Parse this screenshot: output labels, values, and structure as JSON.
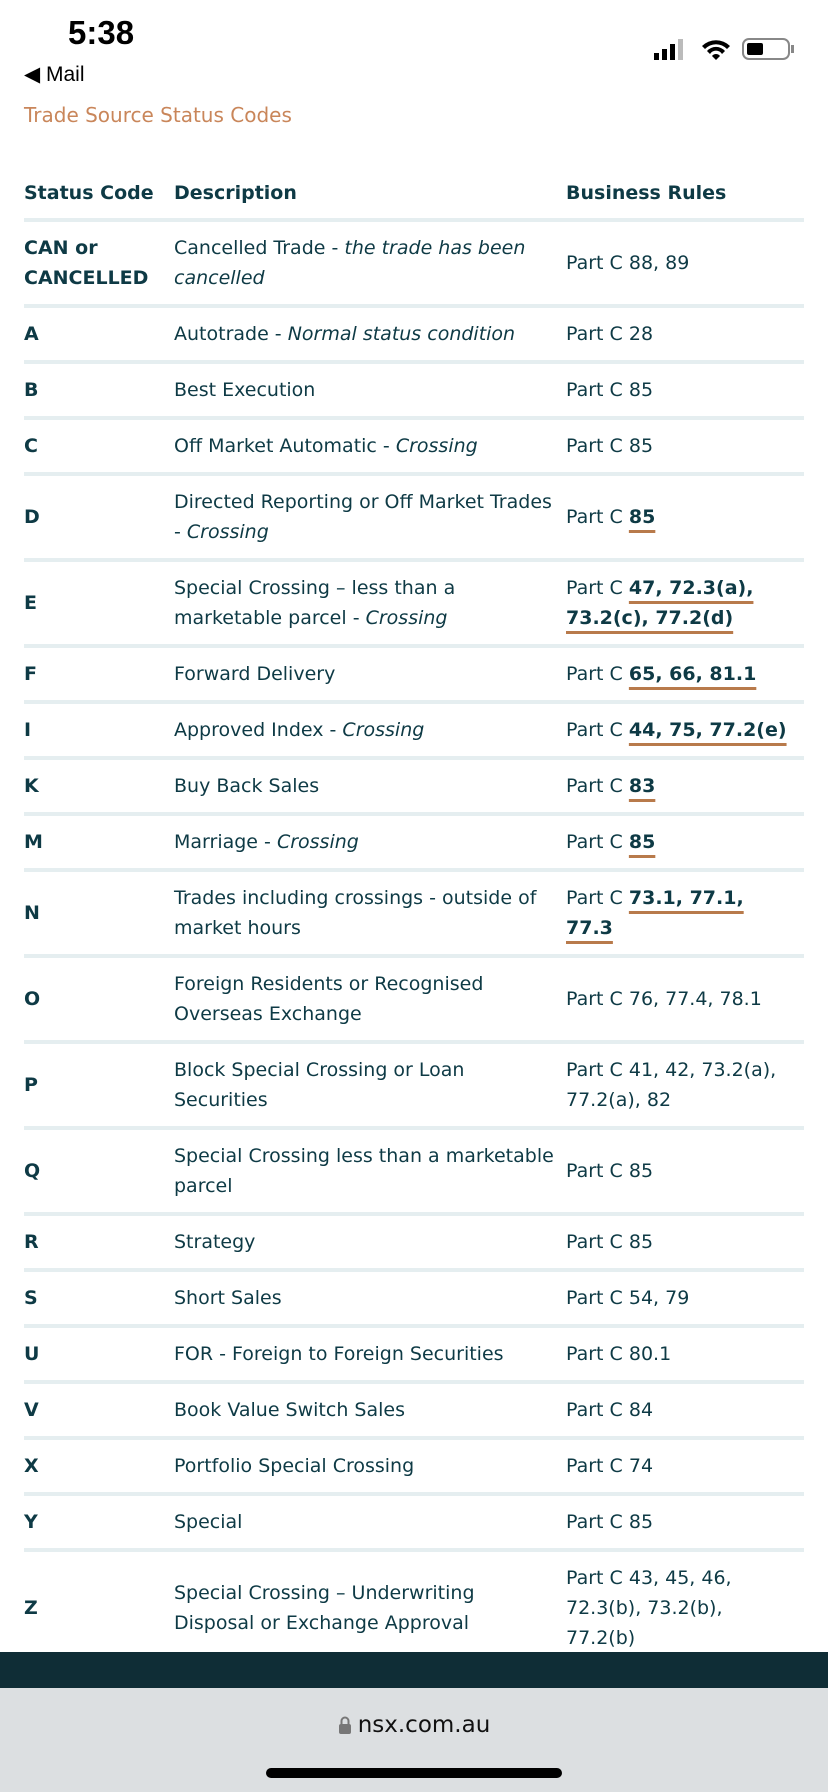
{
  "status_bar": {
    "time": "5:38",
    "back": "Mail"
  },
  "breadcrumb": "Trade Source Status Codes",
  "table": {
    "headers": [
      "Status Code",
      "Description",
      "Business Rules"
    ],
    "rows": [
      {
        "code": "CAN or CANCELLED",
        "desc": "Cancelled Trade - ",
        "desc_em": "the trade has been cancelled",
        "rule": "Part C 88, 89"
      },
      {
        "code": "A",
        "desc": "Autotrade - ",
        "desc_em": "Normal status condition",
        "rule": "Part C 28"
      },
      {
        "code": "B",
        "desc": "Best Execution",
        "rule": "Part C 85"
      },
      {
        "code": "C",
        "desc": "Off Market Automatic - ",
        "desc_em": "Crossing",
        "rule": "Part C 85"
      },
      {
        "code": "D",
        "desc": "Directed Reporting or Off Market Trades - ",
        "desc_em": "Crossing",
        "rule": "Part C",
        "link": "85"
      },
      {
        "code": "E",
        "desc": "Special Crossing – less than a marketable parcel - ",
        "desc_em": "Crossing",
        "rule": "Part C",
        "link": "47, 72.3(a), 73.2(c), 77.2(d)"
      },
      {
        "code": "F",
        "desc": "Forward Delivery",
        "rule": "Part C",
        "link": "65, 66, 81.1"
      },
      {
        "code": "I",
        "desc": "Approved Index - ",
        "desc_em": "Crossing",
        "rule": "Part C",
        "link": "44, 75, 77.2(e)"
      },
      {
        "code": "K",
        "desc": "Buy Back Sales",
        "rule": "Part C",
        "link": "83"
      },
      {
        "code": "M",
        "desc": "Marriage - ",
        "desc_em": "Crossing",
        "rule": "Part C",
        "link": "85"
      },
      {
        "code": "N",
        "desc": "Trades including crossings - outside of market hours",
        "rule": "Part C",
        "link": "73.1, 77.1, 77.3"
      },
      {
        "code": "O",
        "desc": "Foreign Residents or Recognised Overseas Exchange",
        "rule": "Part C 76, 77.4, 78.1"
      },
      {
        "code": "P",
        "desc": "Block Special Crossing or Loan Securities",
        "rule": "Part C 41, 42, 73.2(a), 77.2(a), 82"
      },
      {
        "code": "Q",
        "desc": "Special Crossing less than a marketable parcel",
        "rule": "Part C 85"
      },
      {
        "code": "R",
        "desc": "Strategy",
        "rule": "Part C 85"
      },
      {
        "code": "S",
        "desc": "Short Sales",
        "rule": "Part C 54, 79"
      },
      {
        "code": "U",
        "desc": "FOR - Foreign to Foreign Securities",
        "rule": "Part C 80.1"
      },
      {
        "code": "V",
        "desc": "Book Value Switch Sales",
        "rule": "Part C 84"
      },
      {
        "code": "X",
        "desc": "Portfolio Special Crossing",
        "rule": "Part C 74"
      },
      {
        "code": "Y",
        "desc": "Special",
        "rule": "Part C 85"
      },
      {
        "code": "Z",
        "desc": "Special Crossing – Underwriting Disposal or Exchange Approval",
        "rule": "Part C 43, 45, 46, 72.3(b), 73.2(b), 77.2(b)"
      }
    ]
  },
  "url": "nsx.com.au"
}
